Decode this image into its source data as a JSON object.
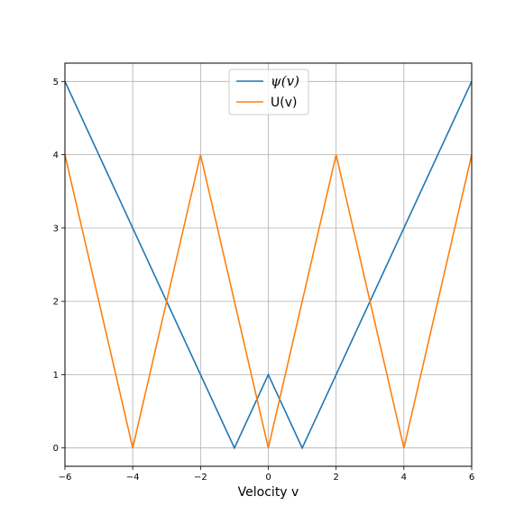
{
  "chart_data": {
    "type": "line",
    "title": "",
    "xlabel": "Velocity v",
    "ylabel": "",
    "xlim": [
      -6,
      6
    ],
    "ylim": [
      -0.25,
      5.25
    ],
    "xticks": [
      -6,
      -4,
      -2,
      0,
      2,
      4,
      6
    ],
    "yticks": [
      0,
      1,
      2,
      3,
      4,
      5
    ],
    "grid": true,
    "legend": {
      "placement": "top-center"
    },
    "series": [
      {
        "name": "ψ(v)",
        "color": "#1f77b4",
        "x": [
          -6,
          -1,
          0,
          1,
          6
        ],
        "y": [
          5,
          0,
          1,
          0,
          5
        ]
      },
      {
        "name": "U(v)",
        "color": "#ff7f0e",
        "x": [
          -6,
          -4,
          -2,
          0,
          2,
          4,
          6
        ],
        "y": [
          4,
          0,
          4,
          0,
          4,
          0,
          4
        ]
      }
    ]
  }
}
